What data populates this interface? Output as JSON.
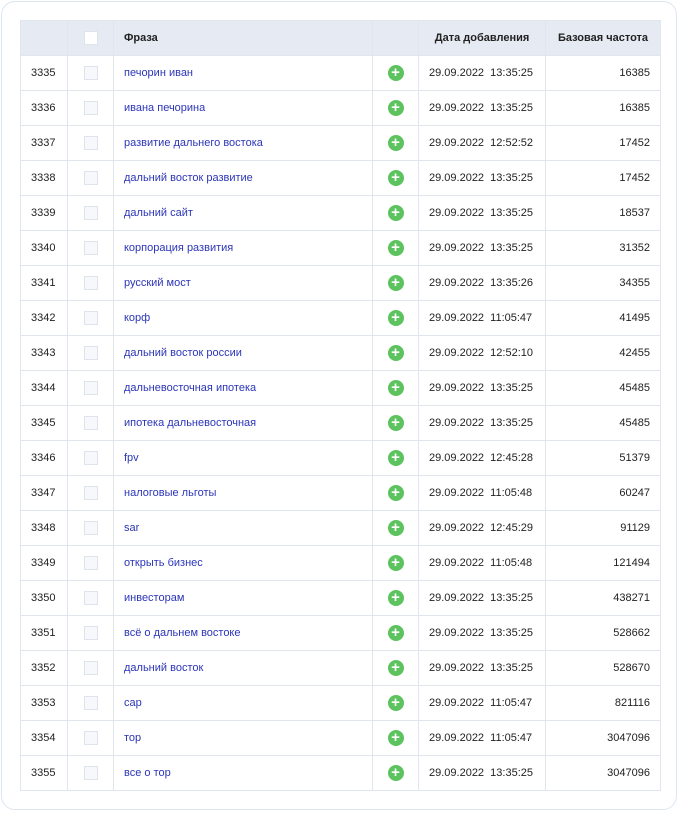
{
  "header": {
    "phrase": "Фраза",
    "date": "Дата добавления",
    "freq": "Базовая частота"
  },
  "colors": {
    "link": "#2b35b8",
    "add": "#5cc35e",
    "header_bg": "#e6eaf3"
  },
  "icons": {
    "add": "plus-circle-icon"
  },
  "rows": [
    {
      "id": "3335",
      "phrase": "печорин иван",
      "date": "29.09.2022  13:35:25",
      "freq": "16385"
    },
    {
      "id": "3336",
      "phrase": "ивана печорина",
      "date": "29.09.2022  13:35:25",
      "freq": "16385"
    },
    {
      "id": "3337",
      "phrase": "развитие дальнего востока",
      "date": "29.09.2022  12:52:52",
      "freq": "17452"
    },
    {
      "id": "3338",
      "phrase": "дальний восток развитие",
      "date": "29.09.2022  13:35:25",
      "freq": "17452"
    },
    {
      "id": "3339",
      "phrase": "дальний сайт",
      "date": "29.09.2022  13:35:25",
      "freq": "18537"
    },
    {
      "id": "3340",
      "phrase": "корпорация развития",
      "date": "29.09.2022  13:35:25",
      "freq": "31352"
    },
    {
      "id": "3341",
      "phrase": "русский мост",
      "date": "29.09.2022  13:35:26",
      "freq": "34355"
    },
    {
      "id": "3342",
      "phrase": "корф",
      "date": "29.09.2022  11:05:47",
      "freq": "41495"
    },
    {
      "id": "3343",
      "phrase": "дальний восток россии",
      "date": "29.09.2022  12:52:10",
      "freq": "42455"
    },
    {
      "id": "3344",
      "phrase": "дальневосточная ипотека",
      "date": "29.09.2022  13:35:25",
      "freq": "45485"
    },
    {
      "id": "3345",
      "phrase": "ипотека дальневосточная",
      "date": "29.09.2022  13:35:25",
      "freq": "45485"
    },
    {
      "id": "3346",
      "phrase": "fpv",
      "date": "29.09.2022  12:45:28",
      "freq": "51379"
    },
    {
      "id": "3347",
      "phrase": "налоговые льготы",
      "date": "29.09.2022  11:05:48",
      "freq": "60247"
    },
    {
      "id": "3348",
      "phrase": "sar",
      "date": "29.09.2022  12:45:29",
      "freq": "91129"
    },
    {
      "id": "3349",
      "phrase": "открыть бизнес",
      "date": "29.09.2022  11:05:48",
      "freq": "121494"
    },
    {
      "id": "3350",
      "phrase": "инвесторам",
      "date": "29.09.2022  13:35:25",
      "freq": "438271"
    },
    {
      "id": "3351",
      "phrase": "всё о дальнем востоке",
      "date": "29.09.2022  13:35:25",
      "freq": "528662"
    },
    {
      "id": "3352",
      "phrase": "дальний восток",
      "date": "29.09.2022  13:35:25",
      "freq": "528670"
    },
    {
      "id": "3353",
      "phrase": "сар",
      "date": "29.09.2022  11:05:47",
      "freq": "821116"
    },
    {
      "id": "3354",
      "phrase": "тор",
      "date": "29.09.2022  11:05:47",
      "freq": "3047096"
    },
    {
      "id": "3355",
      "phrase": "все о тор",
      "date": "29.09.2022  13:35:25",
      "freq": "3047096"
    }
  ]
}
